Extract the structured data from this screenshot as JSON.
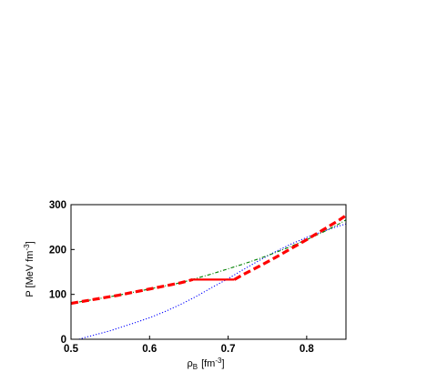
{
  "chart_data": {
    "type": "line",
    "xlabel": {
      "symbol": "ρ",
      "subscript": "B",
      "unit": "[fm",
      "exponent": "-3",
      "close": "]"
    },
    "ylabel": {
      "text": "P [MeV fm",
      "exponent": "-3",
      "close": "]"
    },
    "xlim": [
      0.5,
      0.85
    ],
    "ylim": [
      0,
      300
    ],
    "x_ticks": [
      0.5,
      0.6,
      0.7,
      0.8
    ],
    "x_tick_labels": [
      "0.5",
      "0.6",
      "0.7",
      "0.8"
    ],
    "y_ticks": [
      0,
      100,
      200,
      300
    ],
    "y_tick_labels": [
      "0",
      "100",
      "200",
      "300"
    ],
    "grid": false,
    "legend": "none",
    "series": [
      {
        "style": "dotted",
        "color": "#0000ff",
        "points": [
          [
            0.51,
            0
          ],
          [
            0.52,
            5
          ],
          [
            0.55,
            19
          ],
          [
            0.58,
            36
          ],
          [
            0.6,
            48
          ],
          [
            0.62,
            62
          ],
          [
            0.64,
            78
          ],
          [
            0.66,
            96
          ],
          [
            0.68,
            116
          ],
          [
            0.7,
            135
          ],
          [
            0.72,
            156
          ],
          [
            0.74,
            176
          ],
          [
            0.76,
            195
          ],
          [
            0.78,
            212
          ],
          [
            0.8,
            227
          ],
          [
            0.82,
            240
          ],
          [
            0.84,
            252
          ],
          [
            0.85,
            257
          ]
        ]
      },
      {
        "style": "dash-dot",
        "color": "#008000",
        "points": [
          [
            0.5,
            80
          ],
          [
            0.52,
            86
          ],
          [
            0.54,
            92
          ],
          [
            0.56,
            98
          ],
          [
            0.58,
            105
          ],
          [
            0.6,
            112
          ],
          [
            0.62,
            119
          ],
          [
            0.64,
            126
          ],
          [
            0.66,
            136
          ],
          [
            0.68,
            146
          ],
          [
            0.7,
            157
          ],
          [
            0.72,
            168
          ],
          [
            0.74,
            180
          ],
          [
            0.76,
            193
          ],
          [
            0.78,
            207
          ],
          [
            0.8,
            222
          ],
          [
            0.82,
            238
          ],
          [
            0.84,
            256
          ],
          [
            0.85,
            266
          ]
        ]
      },
      {
        "style": "dashed",
        "color": "#ff0000",
        "points": [
          [
            0.5,
            80
          ],
          [
            0.52,
            86
          ],
          [
            0.54,
            92
          ],
          [
            0.56,
            98
          ],
          [
            0.58,
            105
          ],
          [
            0.6,
            112
          ],
          [
            0.62,
            119
          ],
          [
            0.64,
            126
          ],
          [
            0.655,
            133
          ]
        ]
      },
      {
        "style": "solid",
        "color": "#ff0000",
        "points": [
          [
            0.655,
            133
          ],
          [
            0.708,
            133
          ]
        ]
      },
      {
        "style": "dashed",
        "color": "#ff0000",
        "points": [
          [
            0.708,
            133
          ],
          [
            0.72,
            145
          ],
          [
            0.74,
            163
          ],
          [
            0.76,
            182
          ],
          [
            0.78,
            202
          ],
          [
            0.8,
            222
          ],
          [
            0.82,
            243
          ],
          [
            0.84,
            264
          ],
          [
            0.85,
            276
          ]
        ]
      }
    ]
  }
}
